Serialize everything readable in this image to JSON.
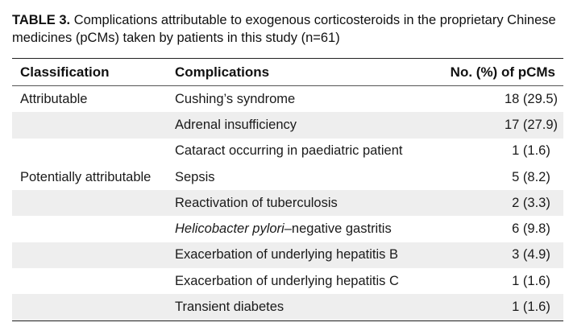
{
  "caption": {
    "label": "TABLE 3.",
    "text": " Complications attributable to exogenous corticosteroids in the proprietary Chinese medicines (pCMs) taken by patients in this study (n=61)"
  },
  "table": {
    "headers": {
      "classification": "Classification",
      "complications": "Complications",
      "count": "No. (%) of pCMs"
    },
    "rows": [
      {
        "classification": "Attributable",
        "complication": "Cushing’s syndrome",
        "count": "18 (29.5)"
      },
      {
        "classification": "",
        "complication": "Adrenal insufficiency",
        "count": "17 (27.9)"
      },
      {
        "classification": "",
        "complication": "Cataract occurring in paediatric patient",
        "count": "1 (1.6)"
      },
      {
        "classification": "Potentially attributable",
        "complication": "Sepsis",
        "count": "5 (8.2)"
      },
      {
        "classification": "",
        "complication": "Reactivation of tuberculosis",
        "count": "2 (3.3)"
      },
      {
        "classification": "",
        "complication_italic": "Helicobacter pylori",
        "complication_rest": "–negative gastritis",
        "count": "6 (9.8)"
      },
      {
        "classification": "",
        "complication": "Exacerbation of underlying hepatitis B",
        "count": "3 (4.9)"
      },
      {
        "classification": "",
        "complication": "Exacerbation of underlying hepatitis C",
        "count": "1 (1.6)"
      },
      {
        "classification": "",
        "complication": "Transient diabetes",
        "count": "1 (1.6)"
      }
    ]
  }
}
